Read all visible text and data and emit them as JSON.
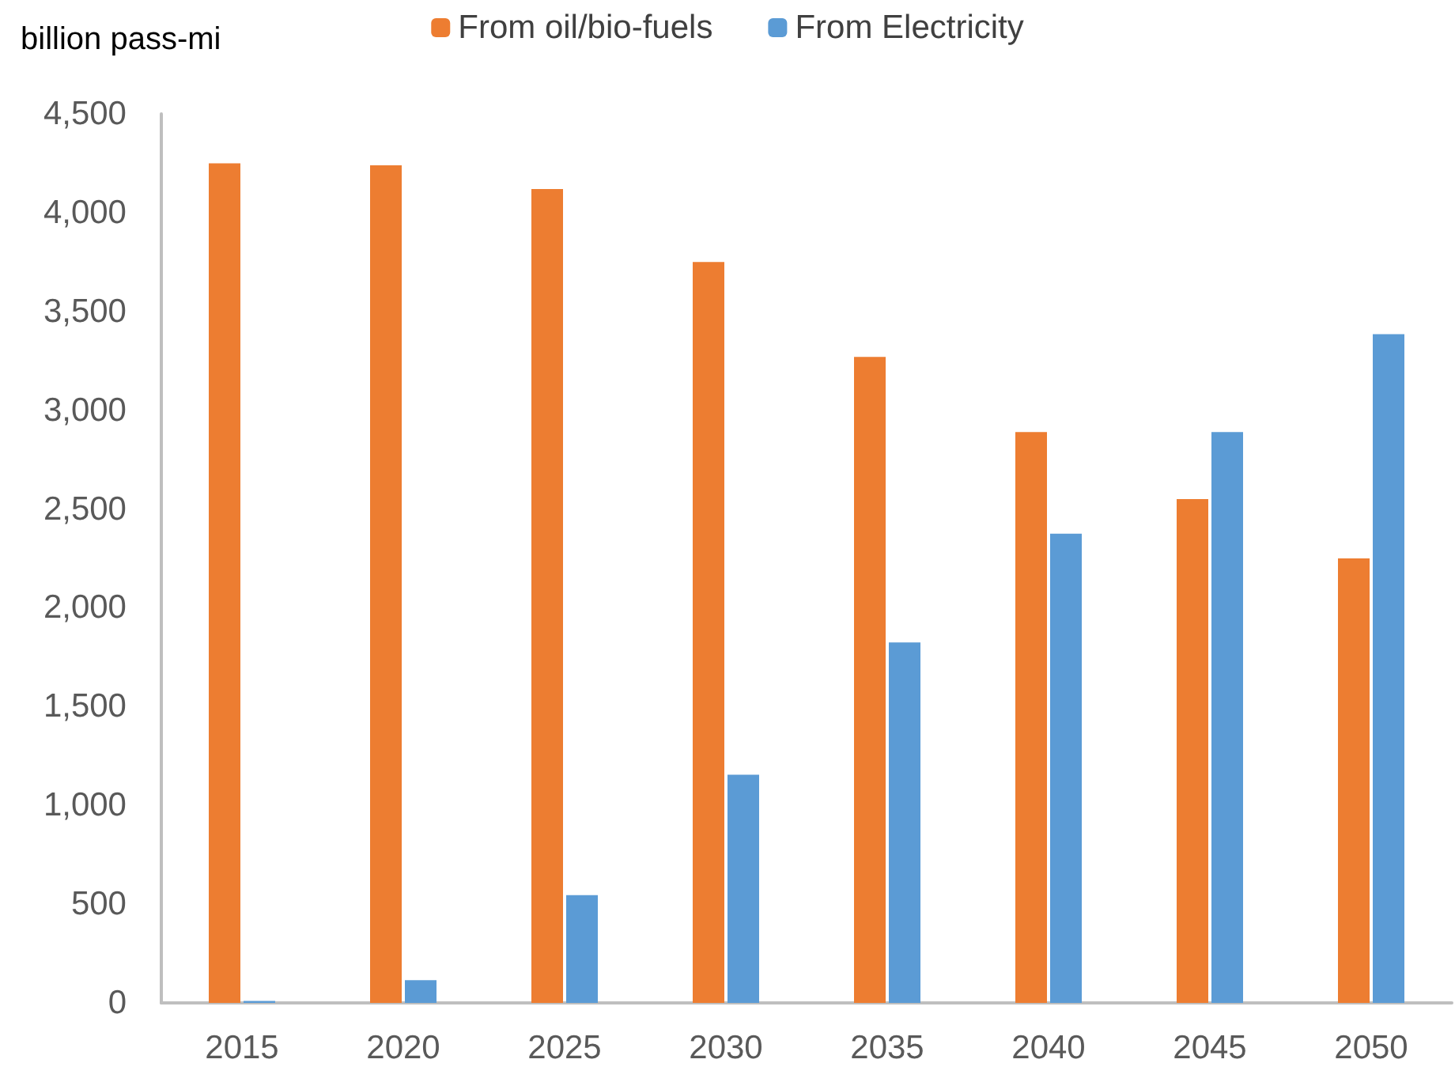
{
  "chart_data": {
    "type": "bar",
    "ylabel": "billion pass-mi",
    "categories": [
      "2015",
      "2020",
      "2025",
      "2030",
      "2035",
      "2040",
      "2045",
      "2050"
    ],
    "series": [
      {
        "name": "From oil/bio-fuels",
        "color": "#ed7d31",
        "values": [
          4250,
          4240,
          4120,
          3750,
          3270,
          2890,
          2550,
          2250
        ]
      },
      {
        "name": "From Electricity",
        "color": "#5b9bd5",
        "values": [
          10,
          115,
          545,
          1155,
          1825,
          2375,
          2890,
          3385
        ]
      }
    ],
    "ylim": [
      0,
      4500
    ],
    "yticks": [
      {
        "value": 0,
        "label": "0"
      },
      {
        "value": 500,
        "label": "500"
      },
      {
        "value": 1000,
        "label": "1,000"
      },
      {
        "value": 1500,
        "label": "1,500"
      },
      {
        "value": 2000,
        "label": "2,000"
      },
      {
        "value": 2500,
        "label": "2,500"
      },
      {
        "value": 3000,
        "label": "3,000"
      },
      {
        "value": 3500,
        "label": "3,500"
      },
      {
        "value": 4000,
        "label": "4,000"
      },
      {
        "value": 4500,
        "label": "4,500"
      }
    ],
    "grid": false,
    "legend": "top"
  }
}
